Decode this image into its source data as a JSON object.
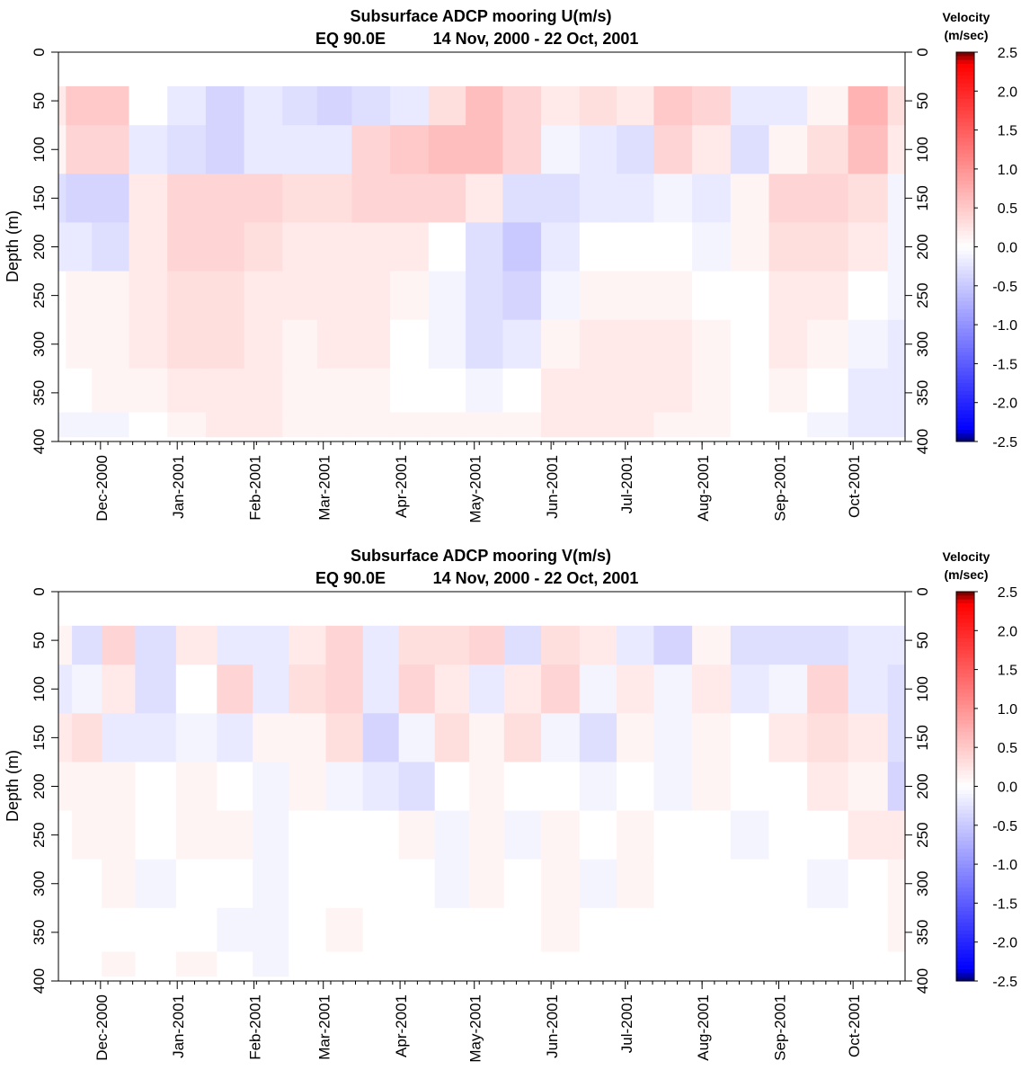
{
  "chart_data": [
    {
      "type": "heatmap",
      "title": "Subsurface ADCP mooring U(m/s)",
      "subtitle_location": "EQ 90.0E",
      "subtitle_dates": "14 Nov, 2000 - 22 Oct, 2001",
      "ylabel": "Depth (m)",
      "xlabel": "",
      "ylim": [
        400,
        0
      ],
      "yticks": [
        "0",
        "50",
        "100",
        "150",
        "200",
        "250",
        "300",
        "350",
        "400"
      ],
      "x_range": [
        "2000-11-14",
        "2001-10-22"
      ],
      "xticks": [
        "Dec-2000",
        "Jan-2001",
        "Feb-2001",
        "Mar-2001",
        "Apr-2001",
        "May-2001",
        "Jun-2001",
        "Jul-2001",
        "Aug-2001",
        "Sep-2001",
        "Oct-2001"
      ],
      "data_depth_range_m": [
        35,
        395
      ],
      "colorbar": {
        "title_line1": "Velocity",
        "title_line2": "(m/sec)",
        "range": [
          -2.5,
          2.5
        ],
        "ticks": [
          "2.5",
          "2.0",
          "1.5",
          "1.0",
          "0.5",
          "0.0",
          "-0.5",
          "-1.0",
          "-1.5",
          "-2.0",
          "-2.5"
        ]
      },
      "grid": false,
      "approx_field_m_per_s": {
        "depths_m": [
          50,
          100,
          150,
          200,
          250,
          300,
          350,
          390
        ],
        "columns": [
          {
            "date": "2000-11-14",
            "values": [
              0.2,
              0.1,
              -0.3,
              -0.2,
              0.0,
              0.0,
              0.0,
              -0.1
            ]
          },
          {
            "date": "2000-11-20",
            "values": [
              0.5,
              0.4,
              -0.4,
              -0.2,
              0.1,
              0.1,
              0.0,
              -0.1
            ]
          },
          {
            "date": "2000-12-05",
            "values": [
              0.5,
              0.4,
              -0.4,
              -0.3,
              0.1,
              0.1,
              0.1,
              -0.1
            ]
          },
          {
            "date": "2000-12-20",
            "values": [
              0.0,
              -0.2,
              0.2,
              0.2,
              0.2,
              0.2,
              0.1,
              0.0
            ]
          },
          {
            "date": "2001-01-05",
            "values": [
              -0.2,
              -0.3,
              0.4,
              0.4,
              0.3,
              0.3,
              0.2,
              0.1
            ]
          },
          {
            "date": "2001-01-20",
            "values": [
              -0.4,
              -0.4,
              0.4,
              0.4,
              0.3,
              0.3,
              0.2,
              0.2
            ]
          },
          {
            "date": "2001-02-05",
            "values": [
              -0.2,
              -0.2,
              0.4,
              0.3,
              0.2,
              0.2,
              0.2,
              0.2
            ]
          },
          {
            "date": "2001-02-20",
            "values": [
              -0.3,
              -0.2,
              0.3,
              0.2,
              0.2,
              0.1,
              0.1,
              0.1
            ]
          },
          {
            "date": "2001-03-05",
            "values": [
              -0.4,
              -0.2,
              0.3,
              0.2,
              0.2,
              0.2,
              0.1,
              0.1
            ]
          },
          {
            "date": "2001-03-20",
            "values": [
              -0.3,
              0.4,
              0.4,
              0.2,
              0.2,
              0.2,
              0.1,
              0.1
            ]
          },
          {
            "date": "2001-04-05",
            "values": [
              -0.2,
              0.5,
              0.4,
              0.2,
              0.1,
              0.0,
              0.0,
              0.1
            ]
          },
          {
            "date": "2001-04-20",
            "values": [
              0.3,
              0.6,
              0.4,
              0.0,
              -0.1,
              -0.1,
              0.0,
              0.1
            ]
          },
          {
            "date": "2001-05-05",
            "values": [
              0.6,
              0.6,
              0.2,
              -0.3,
              -0.3,
              -0.3,
              -0.1,
              0.1
            ]
          },
          {
            "date": "2001-05-20",
            "values": [
              0.4,
              0.4,
              -0.3,
              -0.5,
              -0.4,
              -0.2,
              0.0,
              0.1
            ]
          },
          {
            "date": "2001-06-05",
            "values": [
              0.2,
              -0.1,
              -0.3,
              -0.2,
              -0.1,
              0.1,
              0.2,
              0.2
            ]
          },
          {
            "date": "2001-06-20",
            "values": [
              0.3,
              -0.2,
              -0.2,
              0.0,
              0.1,
              0.2,
              0.2,
              0.2
            ]
          },
          {
            "date": "2001-07-05",
            "values": [
              0.2,
              -0.3,
              -0.2,
              0.0,
              0.1,
              0.2,
              0.2,
              0.2
            ]
          },
          {
            "date": "2001-07-20",
            "values": [
              0.5,
              0.4,
              -0.1,
              0.0,
              0.1,
              0.2,
              0.2,
              0.1
            ]
          },
          {
            "date": "2001-08-05",
            "values": [
              0.4,
              0.2,
              -0.2,
              -0.1,
              0.0,
              0.1,
              0.1,
              0.1
            ]
          },
          {
            "date": "2001-08-20",
            "values": [
              -0.2,
              -0.3,
              0.1,
              0.1,
              0.0,
              0.0,
              0.0,
              0.0
            ]
          },
          {
            "date": "2001-09-05",
            "values": [
              -0.2,
              0.1,
              0.4,
              0.3,
              0.2,
              0.2,
              0.1,
              0.0
            ]
          },
          {
            "date": "2001-09-20",
            "values": [
              0.1,
              0.3,
              0.4,
              0.3,
              0.2,
              0.1,
              0.0,
              -0.1
            ]
          },
          {
            "date": "2001-10-08",
            "values": [
              0.7,
              0.6,
              0.3,
              0.2,
              0.0,
              -0.1,
              -0.2,
              -0.2
            ]
          },
          {
            "date": "2001-10-22",
            "values": [
              0.3,
              0.2,
              -0.1,
              -0.1,
              -0.1,
              -0.2,
              -0.2,
              -0.2
            ]
          }
        ]
      }
    },
    {
      "type": "heatmap",
      "title": "Subsurface ADCP mooring V(m/s)",
      "subtitle_location": "EQ 90.0E",
      "subtitle_dates": "14 Nov, 2000 - 22 Oct, 2001",
      "ylabel": "Depth (m)",
      "xlabel": "",
      "ylim": [
        400,
        0
      ],
      "yticks": [
        "0",
        "50",
        "100",
        "150",
        "200",
        "250",
        "300",
        "350",
        "400"
      ],
      "x_range": [
        "2000-11-14",
        "2001-10-22"
      ],
      "xticks": [
        "Dec-2000",
        "Jan-2001",
        "Feb-2001",
        "Mar-2001",
        "Apr-2001",
        "May-2001",
        "Jun-2001",
        "Jul-2001",
        "Aug-2001",
        "Sep-2001",
        "Oct-2001"
      ],
      "data_depth_range_m": [
        35,
        395
      ],
      "colorbar": {
        "title_line1": "Velocity",
        "title_line2": "(m/sec)",
        "range": [
          -2.5,
          2.5
        ],
        "ticks": [
          "2.5",
          "2.0",
          "1.5",
          "1.0",
          "0.5",
          "0.0",
          "-0.5",
          "-1.0",
          "-1.5",
          "-2.0",
          "-2.5"
        ]
      },
      "grid": false,
      "approx_field_m_per_s": {
        "depths_m": [
          50,
          100,
          150,
          200,
          250,
          300,
          350,
          390
        ],
        "columns": [
          {
            "date": "2000-11-14",
            "values": [
              0.1,
              -0.2,
              0.2,
              0.1,
              0.0,
              0.0,
              0.0,
              0.0
            ]
          },
          {
            "date": "2000-11-25",
            "values": [
              -0.3,
              -0.1,
              0.3,
              0.1,
              0.1,
              0.0,
              0.0,
              0.0
            ]
          },
          {
            "date": "2000-12-08",
            "values": [
              0.4,
              0.2,
              -0.2,
              0.1,
              0.1,
              0.1,
              0.0,
              0.1
            ]
          },
          {
            "date": "2000-12-22",
            "values": [
              -0.3,
              -0.3,
              -0.2,
              0.0,
              0.0,
              -0.1,
              0.0,
              0.0
            ]
          },
          {
            "date": "2001-01-10",
            "values": [
              0.2,
              0.0,
              -0.1,
              0.1,
              0.1,
              0.0,
              0.0,
              0.1
            ]
          },
          {
            "date": "2001-01-24",
            "values": [
              -0.2,
              0.4,
              -0.2,
              0.0,
              0.1,
              0.0,
              -0.1,
              0.0
            ]
          },
          {
            "date": "2001-02-08",
            "values": [
              -0.2,
              -0.2,
              0.1,
              -0.1,
              -0.1,
              -0.1,
              -0.1,
              -0.1
            ]
          },
          {
            "date": "2001-02-22",
            "values": [
              0.2,
              0.3,
              0.1,
              0.1,
              0.0,
              0.0,
              0.0,
              0.0
            ]
          },
          {
            "date": "2001-03-10",
            "values": [
              0.4,
              0.4,
              0.3,
              -0.1,
              0.0,
              0.0,
              0.1,
              0.0
            ]
          },
          {
            "date": "2001-03-24",
            "values": [
              -0.2,
              -0.2,
              -0.4,
              -0.2,
              0.0,
              0.0,
              0.0,
              0.0
            ]
          },
          {
            "date": "2001-04-08",
            "values": [
              0.3,
              0.4,
              -0.1,
              -0.3,
              0.1,
              0.0,
              0.0,
              0.0
            ]
          },
          {
            "date": "2001-04-22",
            "values": [
              0.3,
              0.2,
              0.3,
              0.0,
              -0.1,
              -0.1,
              0.0,
              0.0
            ]
          },
          {
            "date": "2001-05-06",
            "values": [
              0.4,
              -0.2,
              0.1,
              0.1,
              0.1,
              0.1,
              0.0,
              0.0
            ]
          },
          {
            "date": "2001-05-20",
            "values": [
              -0.3,
              0.2,
              0.3,
              0.0,
              -0.1,
              0.0,
              0.0,
              0.0
            ]
          },
          {
            "date": "2001-06-05",
            "values": [
              0.3,
              0.4,
              -0.1,
              0.0,
              0.1,
              0.1,
              0.1,
              0.0
            ]
          },
          {
            "date": "2001-06-20",
            "values": [
              0.2,
              -0.1,
              -0.3,
              -0.1,
              0.0,
              -0.1,
              0.0,
              0.0
            ]
          },
          {
            "date": "2001-07-05",
            "values": [
              -0.2,
              0.2,
              0.1,
              0.0,
              0.1,
              0.1,
              0.0,
              0.0
            ]
          },
          {
            "date": "2001-07-20",
            "values": [
              -0.4,
              -0.1,
              -0.1,
              -0.1,
              0.0,
              0.0,
              0.0,
              0.0
            ]
          },
          {
            "date": "2001-08-05",
            "values": [
              0.1,
              0.2,
              0.1,
              0.1,
              0.0,
              0.0,
              0.0,
              0.0
            ]
          },
          {
            "date": "2001-08-20",
            "values": [
              -0.3,
              -0.2,
              0.0,
              0.0,
              -0.1,
              0.0,
              0.0,
              0.0
            ]
          },
          {
            "date": "2001-09-05",
            "values": [
              -0.3,
              -0.1,
              0.2,
              0.0,
              0.0,
              0.0,
              0.0,
              0.0
            ]
          },
          {
            "date": "2001-09-20",
            "values": [
              -0.3,
              0.4,
              0.3,
              0.2,
              0.0,
              -0.1,
              0.0,
              0.0
            ]
          },
          {
            "date": "2001-10-08",
            "values": [
              -0.2,
              -0.2,
              0.2,
              0.1,
              0.2,
              0.0,
              0.0,
              0.0
            ]
          },
          {
            "date": "2001-10-22",
            "values": [
              -0.2,
              -0.3,
              -0.3,
              -0.4,
              0.2,
              0.1,
              0.1,
              0.0
            ]
          }
        ]
      }
    }
  ],
  "colors": {
    "positive_max": "#660000",
    "positive_strong": "#ff0000",
    "zero": "#ffffff",
    "negative_strong": "#0000ff",
    "negative_max": "#000066",
    "axis": "#000000"
  }
}
